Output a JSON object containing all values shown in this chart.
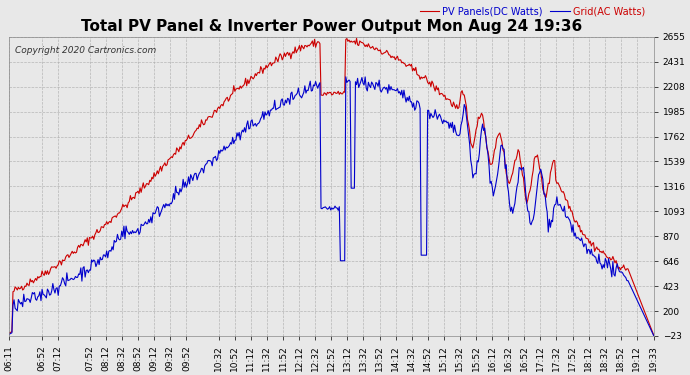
{
  "title": "Total PV Panel & Inverter Power Output Mon Aug 24 19:36",
  "copyright": "Copyright 2020 Cartronics.com",
  "legend_blue": "Grid(AC Watts)",
  "legend_red": "PV Panels(DC Watts)",
  "yticks": [
    2654.6,
    2431.4,
    2208.3,
    1985.2,
    1762.0,
    1538.9,
    1315.8,
    1092.7,
    869.5,
    646.4,
    423.3,
    200.1,
    -23.0
  ],
  "xtick_labels": [
    "06:11",
    "06:52",
    "07:12",
    "07:52",
    "08:12",
    "08:32",
    "08:52",
    "09:12",
    "09:32",
    "09:52",
    "10:32",
    "10:52",
    "11:12",
    "11:32",
    "11:52",
    "12:12",
    "12:32",
    "12:52",
    "13:12",
    "13:32",
    "13:52",
    "14:12",
    "14:32",
    "14:52",
    "15:12",
    "15:32",
    "15:52",
    "16:12",
    "16:32",
    "16:52",
    "17:12",
    "17:32",
    "17:52",
    "18:12",
    "18:32",
    "18:52",
    "19:12",
    "19:33"
  ],
  "ymin": -23.0,
  "ymax": 2654.6,
  "bg_color": "#e8e8e8",
  "grid_color": "#aaaaaa",
  "line_blue": "#0000cc",
  "line_red": "#cc0000",
  "title_fontsize": 11,
  "tick_fontsize": 6.5
}
